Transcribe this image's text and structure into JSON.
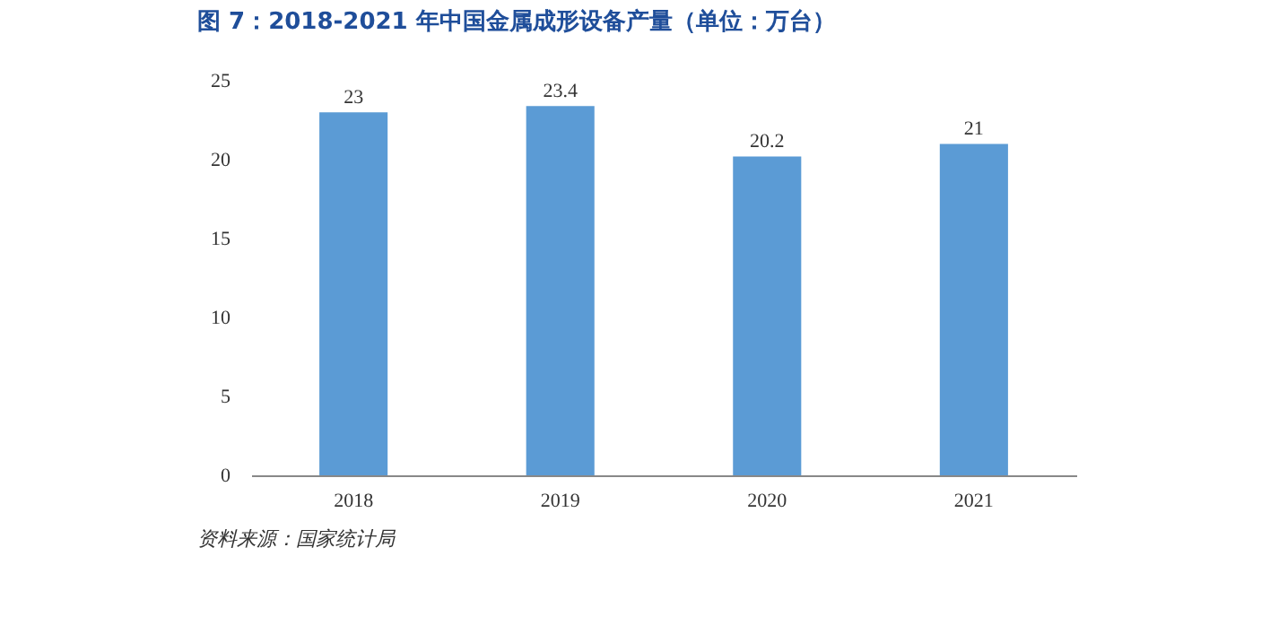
{
  "chart_data": {
    "type": "bar",
    "title": "图 7：2018-2021 年中国金属成形设备产量（单位：万台）",
    "categories": [
      "2018",
      "2019",
      "2020",
      "2021"
    ],
    "values": [
      23,
      23.4,
      20.2,
      21
    ],
    "color": "#5b9bd5",
    "ylim": [
      0,
      25
    ],
    "yticks": [
      0,
      5,
      10,
      15,
      20,
      25
    ],
    "data_labels": true,
    "grid": false,
    "annotations": [
      "资料来源：国家统计局"
    ]
  }
}
